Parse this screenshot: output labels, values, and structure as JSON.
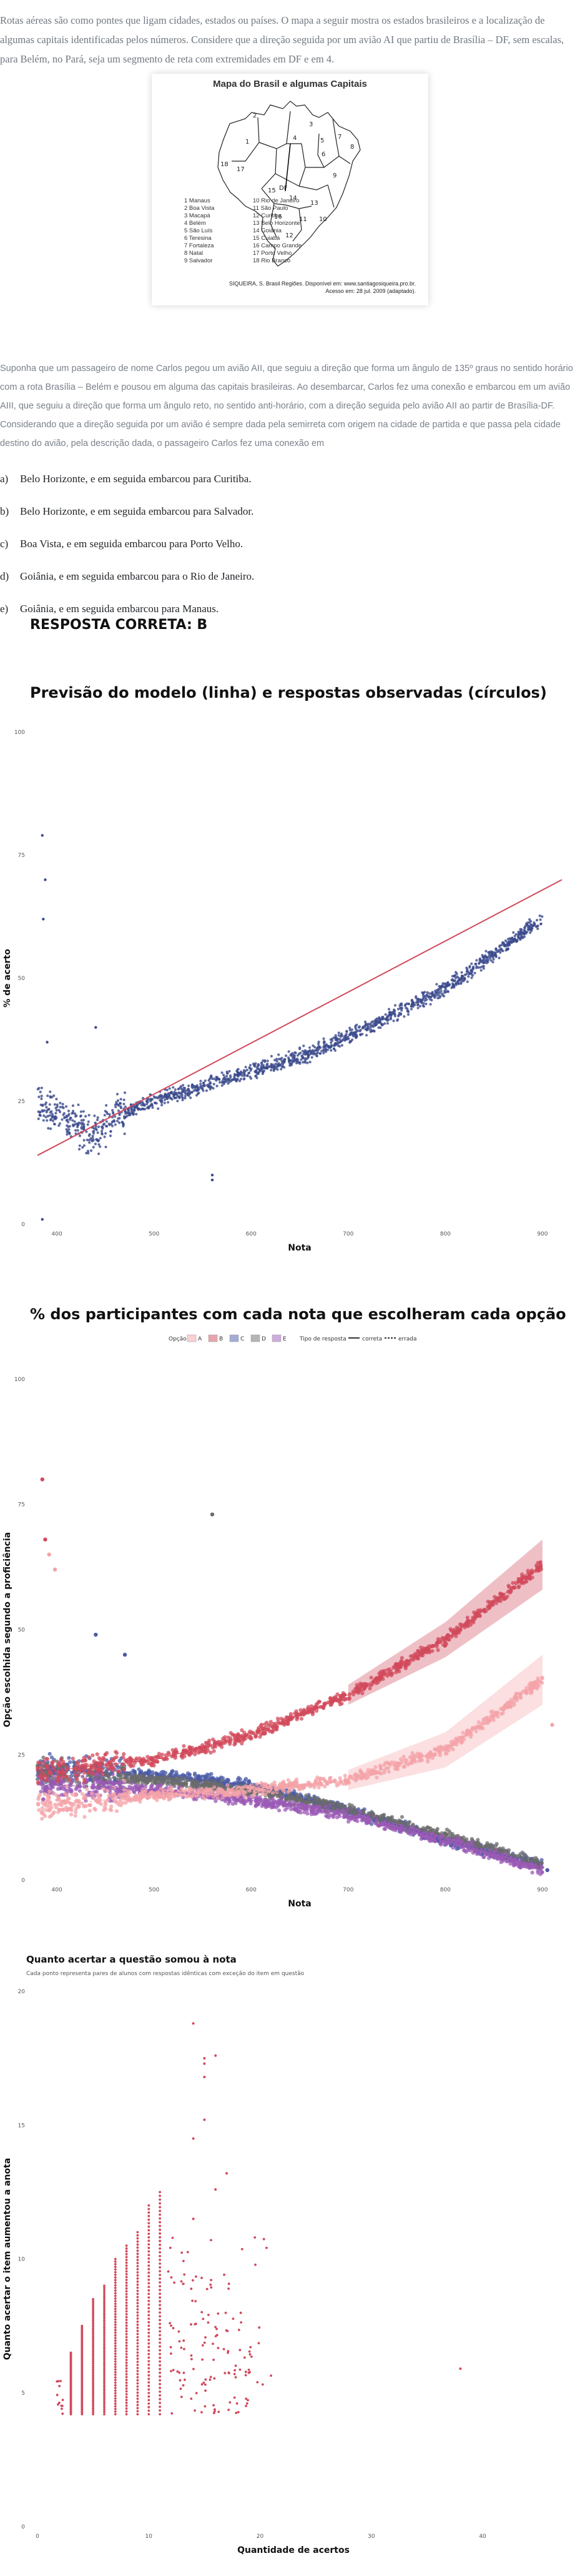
{
  "question": {
    "intro": "Rotas aéreas são como pontes que ligam cidades, estados ou países. O mapa a seguir mostra os estados brasileiros e a localização de algumas capitais identificadas pelos números. Considere que a direção seguida por um avião AI que partiu de Brasília – DF, sem escalas, para Belém, no Pará, seja um segmento de reta com extremidades em DF e em 4.",
    "map": {
      "title": "Mapa do Brasil e algumas Capitais",
      "legend_left": [
        "1 Manaus",
        "2 Boa Vista",
        "3 Macapá",
        "4 Belém",
        "5 São Luís",
        "6 Teresina",
        "7 Fortaleza",
        "8 Natal",
        "9 Salvador"
      ],
      "legend_right": [
        "10 Rio de Janeiro",
        "11 São Paulo",
        "12 Curitiba",
        "13 Belo Horizonte",
        "14 Goiânia",
        "15 Cuiabá",
        "16 Campo Grande",
        "17 Porto Velho",
        "18 Rio Branco"
      ],
      "source_line1": "SIQUEIRA, S. Brasil Regiões. Disponível em: www.santiagosiqueira.pro.br.",
      "source_line2": "Acesso em: 28 jul. 2009 (adaptado).",
      "labels": [
        "1",
        "2",
        "3",
        "4",
        "5",
        "6",
        "7",
        "8",
        "9",
        "10",
        "11",
        "12",
        "13",
        "14",
        "15",
        "16",
        "17",
        "18",
        "DF"
      ]
    },
    "scenario": "Suponha que um passageiro de nome Carlos pegou um avião AII, que seguiu a direção que forma um ângulo de 135º graus no sentido horário com a rota Brasília – Belém e pousou em alguma das capitais brasileiras. Ao desembarcar, Carlos fez uma conexão e embarcou em um avião AIII, que seguiu a direção que forma um ângulo reto, no sentido anti-horário, com a direção seguida pelo avião AII ao partir de Brasília-DF. Considerando que a direção seguida por um avião é sempre dada pela semirreta com origem na cidade de partida e que passa pela cidade destino do avião, pela descrição dada, o passageiro Carlos fez uma conexão em",
    "options": [
      {
        "letter": "a)",
        "text": "Belo Horizonte, e em seguida embarcou para Curitiba."
      },
      {
        "letter": "b)",
        "text": "Belo Horizonte, e em seguida embarcou para Salvador."
      },
      {
        "letter": "c)",
        "text": "Boa Vista, e em seguida embarcou para Porto Velho."
      },
      {
        "letter": "d)",
        "text": "Goiânia, e em seguida embarcou para o Rio de Janeiro."
      },
      {
        "letter": "e)",
        "text": "Goiânia, e em seguida embarcou para Manaus."
      }
    ],
    "answer": "RESPOSTA CORRETA: B"
  },
  "colors": {
    "accent_red": "#d1495b",
    "navy": "#3b4a8c",
    "pink": "#f4a3a8",
    "blue": "#4a5aa8",
    "grey": "#6b6b6b",
    "purple": "#9b59b6"
  },
  "chart_data": [
    {
      "type": "scatter",
      "title": "Previsão do modelo (linha) e respostas observadas (círculos)",
      "xlabel": "Nota",
      "ylabel": "% de acerto",
      "xlim": [
        380,
        920
      ],
      "ylim": [
        0,
        100
      ],
      "x_ticks": [
        "400",
        "500",
        "600",
        "700",
        "800",
        "900"
      ],
      "x_tick_values": [
        400,
        500,
        600,
        700,
        800,
        900
      ],
      "y_ticks": [
        "0",
        "25",
        "50",
        "75",
        "100"
      ],
      "y_tick_values": [
        0,
        25,
        50,
        75,
        100
      ],
      "model_line": {
        "x": [
          380,
          920
        ],
        "y": [
          14,
          70
        ]
      },
      "observed_trend": {
        "x": [
          380,
          420,
          440,
          460,
          500,
          550,
          600,
          650,
          700,
          750,
          800,
          850,
          900
        ],
        "y": [
          25,
          20,
          18,
          22,
          25,
          28,
          31,
          34,
          38,
          43,
          48,
          55,
          62
        ]
      },
      "grid": false
    },
    {
      "type": "scatter",
      "title": "% dos participantes com cada nota que escolheram cada opção",
      "xlabel": "Nota",
      "ylabel": "Opção escolhida segundo a proficiência",
      "xlim": [
        380,
        920
      ],
      "ylim": [
        0,
        100
      ],
      "x_ticks": [
        "400",
        "500",
        "600",
        "700",
        "800",
        "900"
      ],
      "x_tick_values": [
        400,
        500,
        600,
        700,
        800,
        900
      ],
      "y_ticks": [
        "0",
        "25",
        "50",
        "75",
        "100"
      ],
      "y_tick_values": [
        0,
        25,
        50,
        75,
        100
      ],
      "legend_option_title": "Opção",
      "legend_type_title": "Tipo de resposta",
      "legend_types": [
        "correta",
        "errada"
      ],
      "series": [
        {
          "name": "A",
          "color": "#f4a3a8",
          "x": [
            400,
            500,
            600,
            700,
            800,
            900
          ],
          "y": [
            15,
            17,
            18,
            20,
            26,
            40
          ]
        },
        {
          "name": "B",
          "color": "#d1495b",
          "x": [
            400,
            500,
            600,
            700,
            800,
            900
          ],
          "y": [
            22,
            24,
            29,
            37,
            48,
            63
          ]
        },
        {
          "name": "C",
          "color": "#4a5aa8",
          "x": [
            400,
            500,
            600,
            700,
            800,
            900
          ],
          "y": [
            22,
            21,
            19,
            14,
            8,
            3
          ]
        },
        {
          "name": "D",
          "color": "#6b6b6b",
          "x": [
            400,
            500,
            600,
            700,
            800,
            900
          ],
          "y": [
            21,
            20,
            18,
            14,
            9,
            3
          ]
        },
        {
          "name": "E",
          "color": "#9b59b6",
          "x": [
            400,
            500,
            600,
            700,
            800,
            900
          ],
          "y": [
            19,
            18,
            16,
            13,
            8,
            2
          ]
        }
      ],
      "grid": false
    },
    {
      "type": "scatter",
      "title": "Quanto acertar a questão somou à nota",
      "subtitle": "Cada ponto representa pares de alunos com respostas idênticas com exceção do item em questão",
      "xlabel": "Quantidade de acertos",
      "ylabel": "Quanto acertar o item aumentou a anota",
      "xlim": [
        0,
        46
      ],
      "ylim": [
        0,
        20
      ],
      "x_ticks": [
        "0",
        "10",
        "20",
        "30",
        "40"
      ],
      "x_tick_values": [
        0,
        10,
        20,
        30,
        40
      ],
      "y_ticks": [
        "0",
        "5",
        "10",
        "15",
        "20"
      ],
      "y_tick_values": [
        0,
        5,
        10,
        15,
        20
      ],
      "column_min": 4.2,
      "column_tops": [
        [
          2,
          5.5
        ],
        [
          3,
          6.5
        ],
        [
          4,
          7.5
        ],
        [
          5,
          8.5
        ],
        [
          6,
          9.0
        ],
        [
          7,
          10.0
        ],
        [
          8,
          10.5
        ],
        [
          9,
          11.0
        ],
        [
          10,
          12.0
        ],
        [
          11,
          12.5
        ],
        [
          12,
          11.0
        ],
        [
          13,
          10.5
        ],
        [
          14,
          9.5
        ],
        [
          15,
          9.0
        ],
        [
          16,
          8.5
        ],
        [
          17,
          9.5
        ],
        [
          18,
          8.0
        ],
        [
          19,
          7.0
        ]
      ],
      "outliers": {
        "x": [
          14,
          15,
          15,
          16,
          14,
          15,
          17,
          14,
          16,
          15,
          38
        ],
        "y": [
          18.8,
          17.5,
          17.3,
          17.6,
          14.5,
          15.2,
          13.2,
          11.5,
          12.6,
          16.8,
          5.9
        ]
      },
      "grid": false
    }
  ]
}
